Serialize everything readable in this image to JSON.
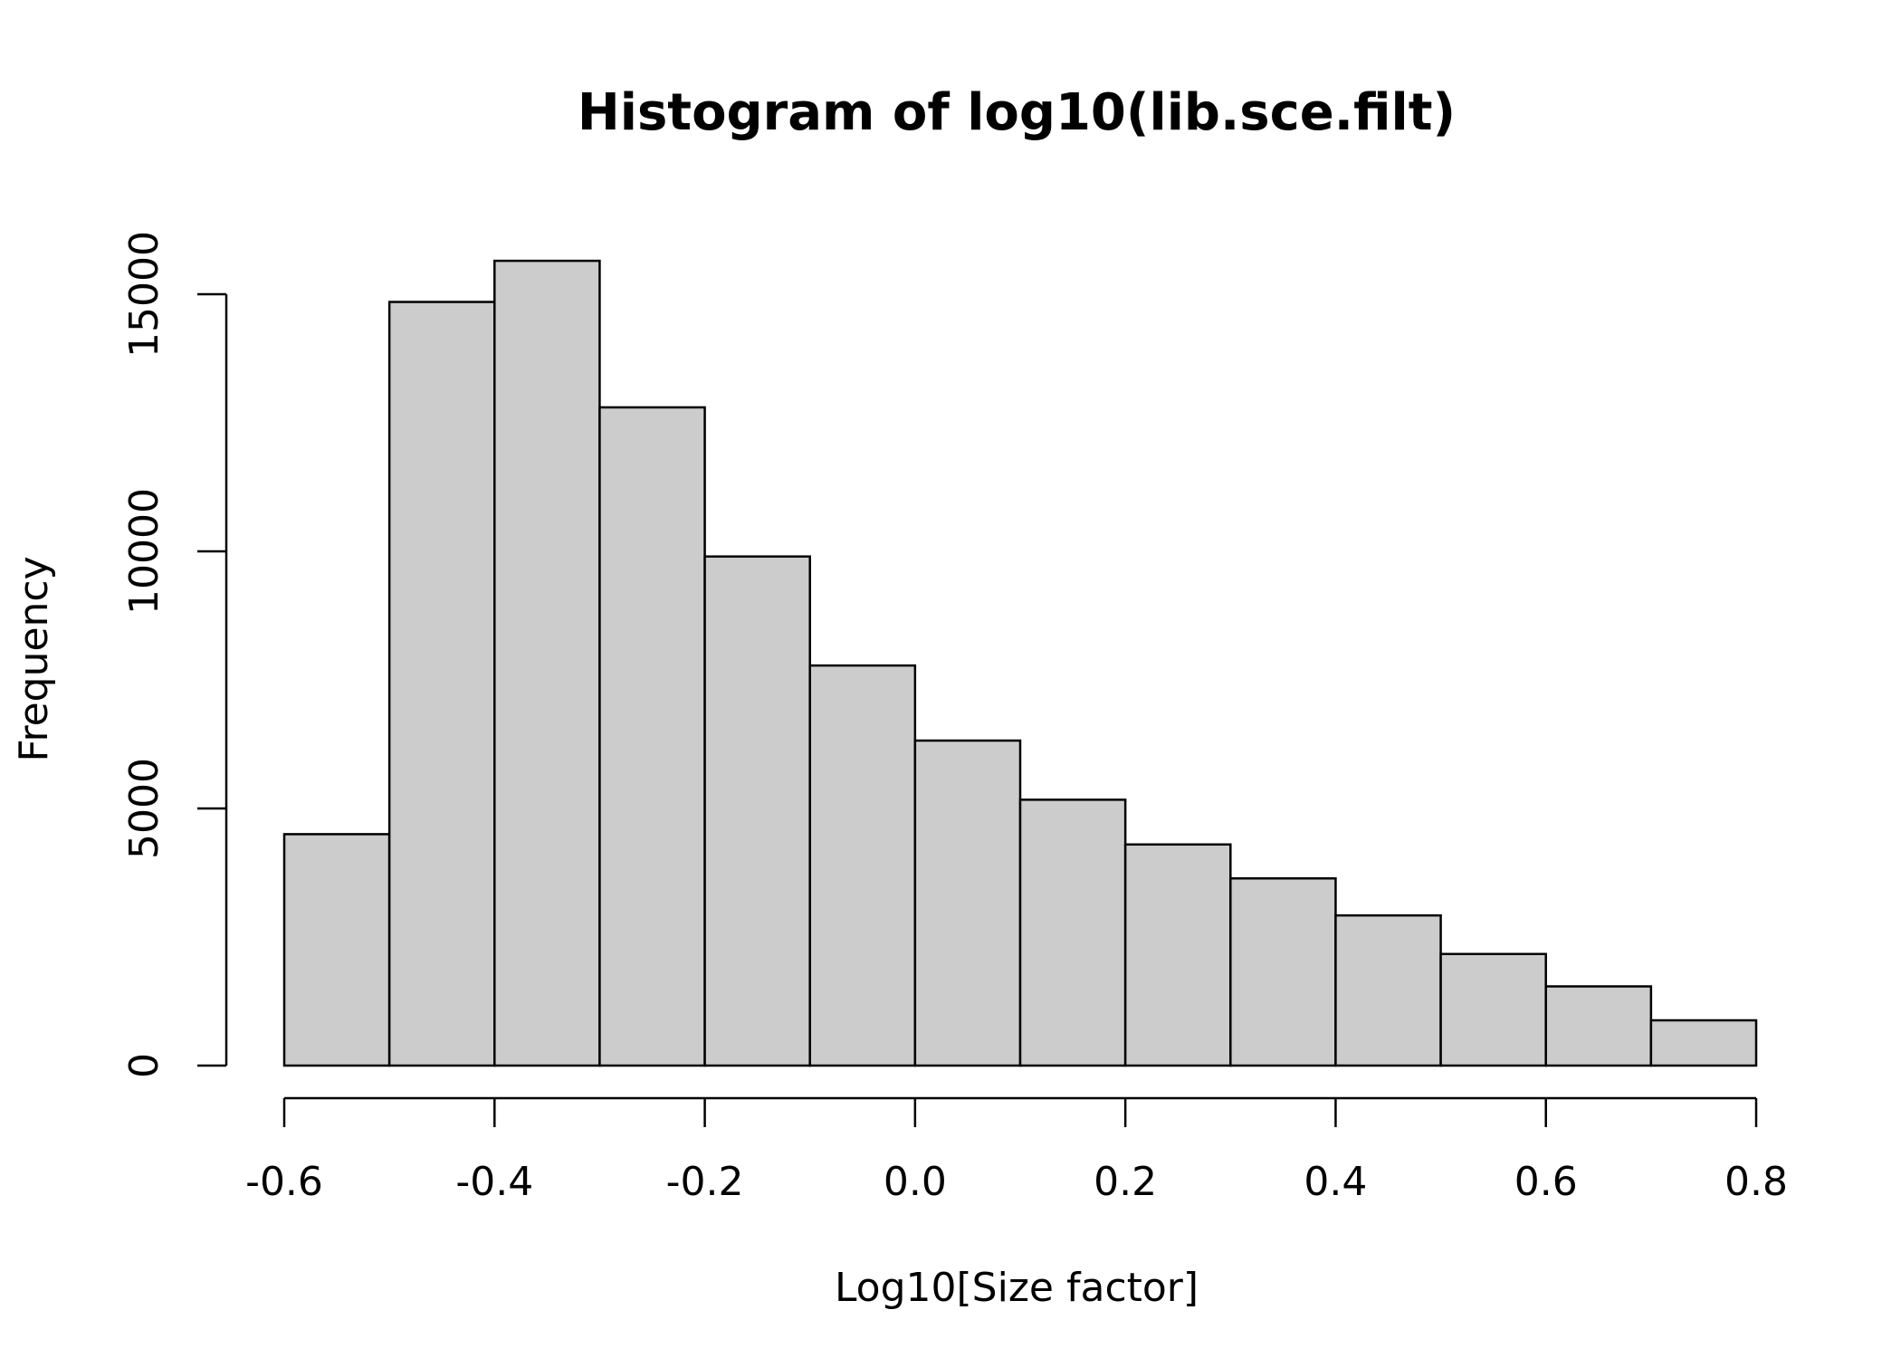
{
  "chart_data": {
    "type": "bar",
    "title": "Histogram of log10(lib.sce.filt)",
    "xlabel": "Log10[Size factor]",
    "ylabel": "Frequency",
    "bins": [
      {
        "start": -0.6,
        "end": -0.5,
        "count": 4500
      },
      {
        "start": -0.5,
        "end": -0.4,
        "count": 14850
      },
      {
        "start": -0.4,
        "end": -0.3,
        "count": 15650
      },
      {
        "start": -0.3,
        "end": -0.2,
        "count": 12800
      },
      {
        "start": -0.2,
        "end": -0.1,
        "count": 9900
      },
      {
        "start": -0.1,
        "end": 0.0,
        "count": 7780
      },
      {
        "start": 0.0,
        "end": 0.1,
        "count": 6320
      },
      {
        "start": 0.1,
        "end": 0.2,
        "count": 5170
      },
      {
        "start": 0.2,
        "end": 0.3,
        "count": 4300
      },
      {
        "start": 0.3,
        "end": 0.4,
        "count": 3640
      },
      {
        "start": 0.4,
        "end": 0.5,
        "count": 2920
      },
      {
        "start": 0.5,
        "end": 0.6,
        "count": 2170
      },
      {
        "start": 0.6,
        "end": 0.7,
        "count": 1540
      },
      {
        "start": 0.7,
        "end": 0.8,
        "count": 880
      }
    ],
    "xlim": [
      -0.6,
      0.8
    ],
    "ylim": [
      0,
      15000
    ],
    "xticks": [
      -0.6,
      -0.4,
      -0.2,
      0.0,
      0.2,
      0.4,
      0.6,
      0.8
    ],
    "xtick_labels": [
      "-0.6",
      "-0.4",
      "-0.2",
      "0.0",
      "0.2",
      "0.4",
      "0.6",
      "0.8"
    ],
    "yticks": [
      0,
      5000,
      10000,
      15000
    ],
    "ytick_labels": [
      "0",
      "5000",
      "10000",
      "15000"
    ],
    "bar_color": "#cccccc",
    "edge_color": "#000000",
    "grid": false
  }
}
